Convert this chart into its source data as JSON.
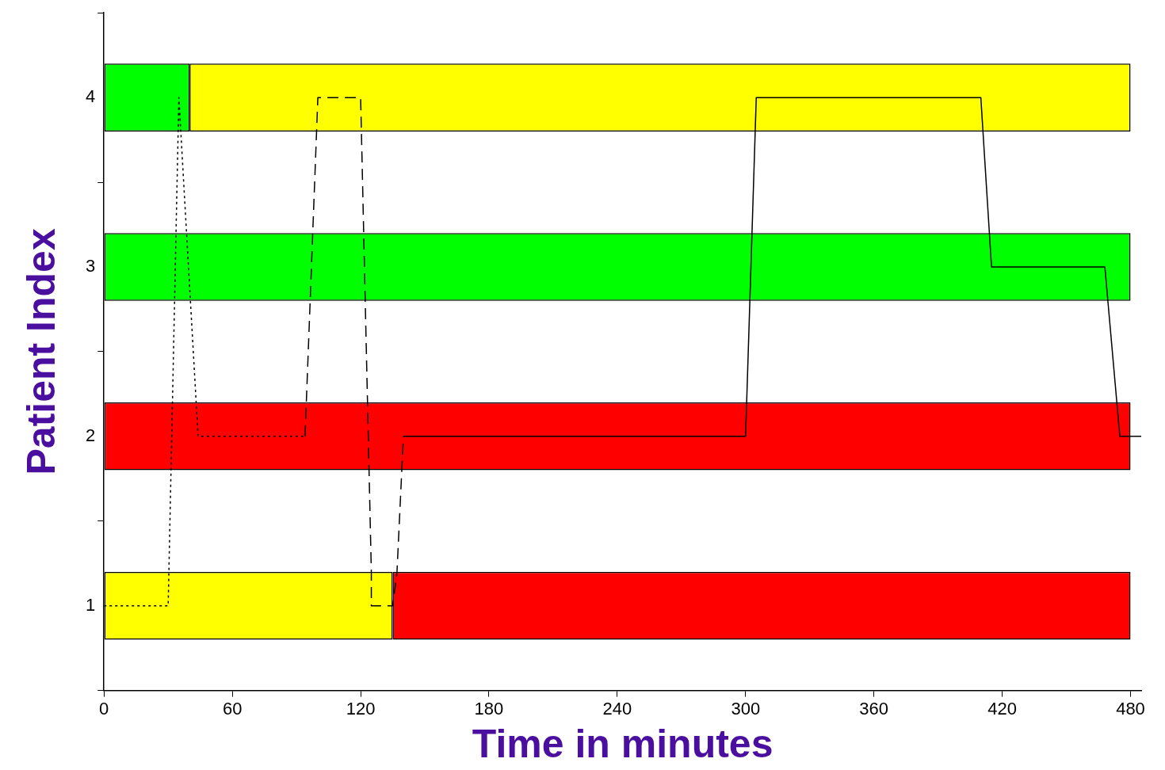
{
  "chart_data": {
    "type": "bar",
    "orientation": "horizontal",
    "xlabel": "Time in minutes",
    "ylabel": "Patient Index",
    "xlim": [
      0,
      485
    ],
    "xticks": [
      0,
      60,
      120,
      180,
      240,
      300,
      360,
      420,
      480
    ],
    "ylim": [
      0.5,
      4.5
    ],
    "yticks": [
      1,
      2,
      3,
      4
    ],
    "grid": false,
    "legend": false,
    "series": [
      {
        "x": [
          4,
          3,
          2,
          1
        ],
        "base": [
          0,
          0,
          0,
          0
        ],
        "values": [
          40,
          480,
          480,
          135
        ],
        "colors": [
          "#00ff00",
          "#00ff00",
          "#ff0000",
          "#ffff00"
        ]
      },
      {
        "x": [
          4,
          3,
          2,
          1
        ],
        "base": [
          40,
          null,
          null,
          135
        ],
        "values": [
          440,
          null,
          null,
          345
        ],
        "colors": [
          "#ffff00",
          null,
          null,
          "#ff0000"
        ]
      },
      {
        "type": "line",
        "color": "#000000",
        "line_style": "dotted",
        "marker": "none",
        "x": [
          1,
          1,
          4,
          2,
          2
        ],
        "values": [
          0,
          30,
          35,
          44,
          94
        ]
      },
      {
        "type": "line",
        "color": "#000000",
        "line_style": "dashed",
        "marker": "none",
        "x": [
          2,
          4,
          4,
          1.2,
          1,
          1,
          1.2,
          2
        ],
        "values": [
          94,
          100,
          120,
          125,
          125,
          135,
          137,
          140
        ]
      },
      {
        "type": "line",
        "color": "#000000",
        "line_style": "solid",
        "marker": "none",
        "x": [
          2,
          2,
          4,
          4,
          3,
          3,
          2,
          2
        ],
        "values": [
          140,
          300,
          305,
          410,
          415,
          468,
          475,
          485
        ]
      }
    ]
  }
}
